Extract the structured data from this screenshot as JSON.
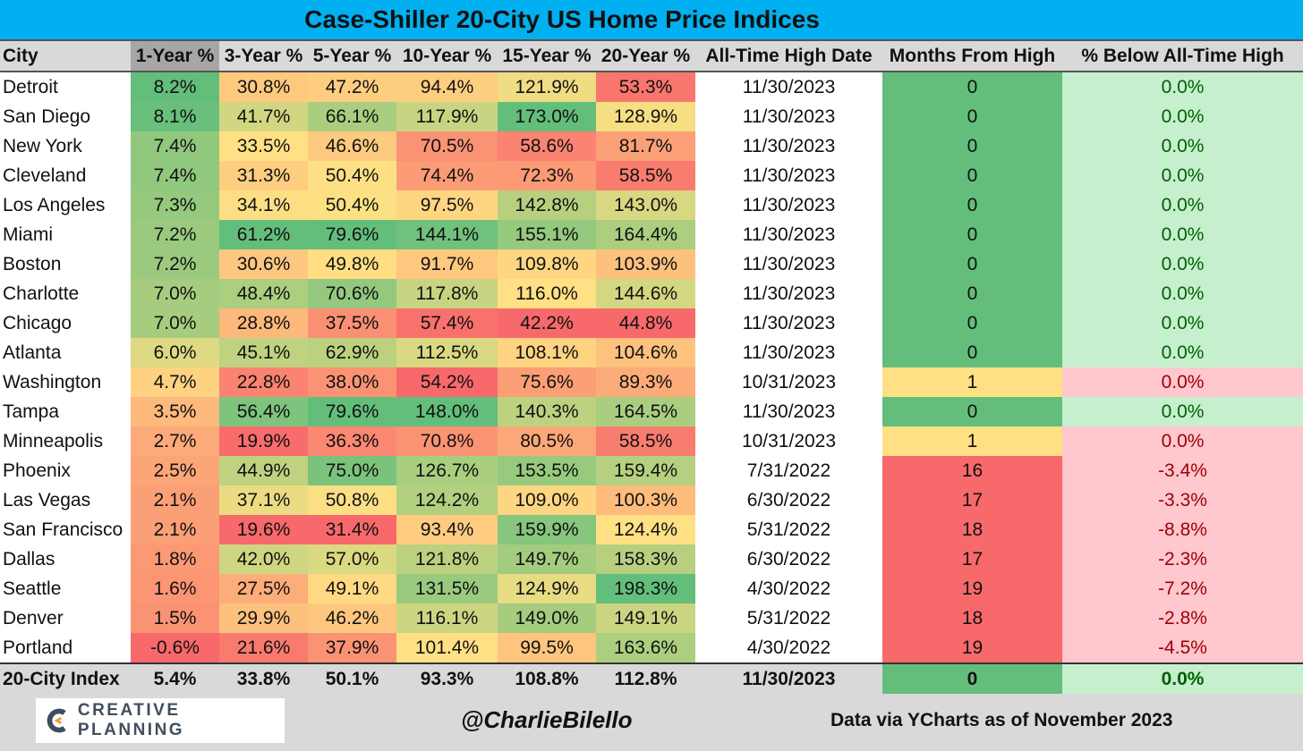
{
  "title": "Case-Shiller 20-City US Home Price Indices",
  "headers": [
    "City",
    "1-Year %",
    "3-Year %",
    "5-Year %",
    "10-Year %",
    "15-Year %",
    "20-Year %",
    "All-Time High Date",
    "Months From High",
    "% Below All-Time High"
  ],
  "colors": {
    "title_bar": "#00b0f0",
    "header": "#d9d9d9",
    "sorted_header": "#a6a6a6",
    "months_green": "#63be7b",
    "months_yellow": "#ffe084",
    "months_red": "#f8696b",
    "pct_green_bg": "#c6efce",
    "pct_green_text": "#006100",
    "pct_red_bg": "#ffc7ce",
    "pct_red_text": "#9c0006"
  },
  "chart_data": {
    "type": "table",
    "title": "Case-Shiller 20-City US Home Price Indices",
    "columns": [
      "City",
      "1-Year %",
      "3-Year %",
      "5-Year %",
      "10-Year %",
      "15-Year %",
      "20-Year %",
      "All-Time High Date",
      "Months From High",
      "% Below All-Time High"
    ],
    "rows": [
      [
        "Detroit",
        "8.2%",
        "30.8%",
        "47.2%",
        "94.4%",
        "121.9%",
        "53.3%",
        "11/30/2023",
        "0",
        "0.0%"
      ],
      [
        "San Diego",
        "8.1%",
        "41.7%",
        "66.1%",
        "117.9%",
        "173.0%",
        "128.9%",
        "11/30/2023",
        "0",
        "0.0%"
      ],
      [
        "New York",
        "7.4%",
        "33.5%",
        "46.6%",
        "70.5%",
        "58.6%",
        "81.7%",
        "11/30/2023",
        "0",
        "0.0%"
      ],
      [
        "Cleveland",
        "7.4%",
        "31.3%",
        "50.4%",
        "74.4%",
        "72.3%",
        "58.5%",
        "11/30/2023",
        "0",
        "0.0%"
      ],
      [
        "Los Angeles",
        "7.3%",
        "34.1%",
        "50.4%",
        "97.5%",
        "142.8%",
        "143.0%",
        "11/30/2023",
        "0",
        "0.0%"
      ],
      [
        "Miami",
        "7.2%",
        "61.2%",
        "79.6%",
        "144.1%",
        "155.1%",
        "164.4%",
        "11/30/2023",
        "0",
        "0.0%"
      ],
      [
        "Boston",
        "7.2%",
        "30.6%",
        "49.8%",
        "91.7%",
        "109.8%",
        "103.9%",
        "11/30/2023",
        "0",
        "0.0%"
      ],
      [
        "Charlotte",
        "7.0%",
        "48.4%",
        "70.6%",
        "117.8%",
        "116.0%",
        "144.6%",
        "11/30/2023",
        "0",
        "0.0%"
      ],
      [
        "Chicago",
        "7.0%",
        "28.8%",
        "37.5%",
        "57.4%",
        "42.2%",
        "44.8%",
        "11/30/2023",
        "0",
        "0.0%"
      ],
      [
        "Atlanta",
        "6.0%",
        "45.1%",
        "62.9%",
        "112.5%",
        "108.1%",
        "104.6%",
        "11/30/2023",
        "0",
        "0.0%"
      ],
      [
        "Washington",
        "4.7%",
        "22.8%",
        "38.0%",
        "54.2%",
        "75.6%",
        "89.3%",
        "10/31/2023",
        "1",
        "0.0%"
      ],
      [
        "Tampa",
        "3.5%",
        "56.4%",
        "79.6%",
        "148.0%",
        "140.3%",
        "164.5%",
        "11/30/2023",
        "0",
        "0.0%"
      ],
      [
        "Minneapolis",
        "2.7%",
        "19.9%",
        "36.3%",
        "70.8%",
        "80.5%",
        "58.5%",
        "10/31/2023",
        "1",
        "0.0%"
      ],
      [
        "Phoenix",
        "2.5%",
        "44.9%",
        "75.0%",
        "126.7%",
        "153.5%",
        "159.4%",
        "7/31/2022",
        "16",
        "-3.4%"
      ],
      [
        "Las Vegas",
        "2.1%",
        "37.1%",
        "50.8%",
        "124.2%",
        "109.0%",
        "100.3%",
        "6/30/2022",
        "17",
        "-3.3%"
      ],
      [
        "San Francisco",
        "2.1%",
        "19.6%",
        "31.4%",
        "93.4%",
        "159.9%",
        "124.4%",
        "5/31/2022",
        "18",
        "-8.8%"
      ],
      [
        "Dallas",
        "1.8%",
        "42.0%",
        "57.0%",
        "121.8%",
        "149.7%",
        "158.3%",
        "6/30/2022",
        "17",
        "-2.3%"
      ],
      [
        "Seattle",
        "1.6%",
        "27.5%",
        "49.1%",
        "131.5%",
        "124.9%",
        "198.3%",
        "4/30/2022",
        "19",
        "-7.2%"
      ],
      [
        "Denver",
        "1.5%",
        "29.9%",
        "46.2%",
        "116.1%",
        "149.0%",
        "149.1%",
        "5/31/2022",
        "18",
        "-2.8%"
      ],
      [
        "Portland",
        "-0.6%",
        "21.6%",
        "37.9%",
        "101.4%",
        "99.5%",
        "163.6%",
        "4/30/2022",
        "19",
        "-4.5%"
      ]
    ],
    "total_row": [
      "20-City Index",
      "5.4%",
      "33.8%",
      "50.1%",
      "93.3%",
      "108.8%",
      "112.8%",
      "11/30/2023",
      "0",
      "0.0%"
    ]
  },
  "footer": {
    "logo_text": "CREATIVE PLANNING",
    "logo_icon": "creative-planning-c-icon",
    "handle": "@CharlieBilello",
    "source": "Data via YCharts as of November 2023"
  }
}
